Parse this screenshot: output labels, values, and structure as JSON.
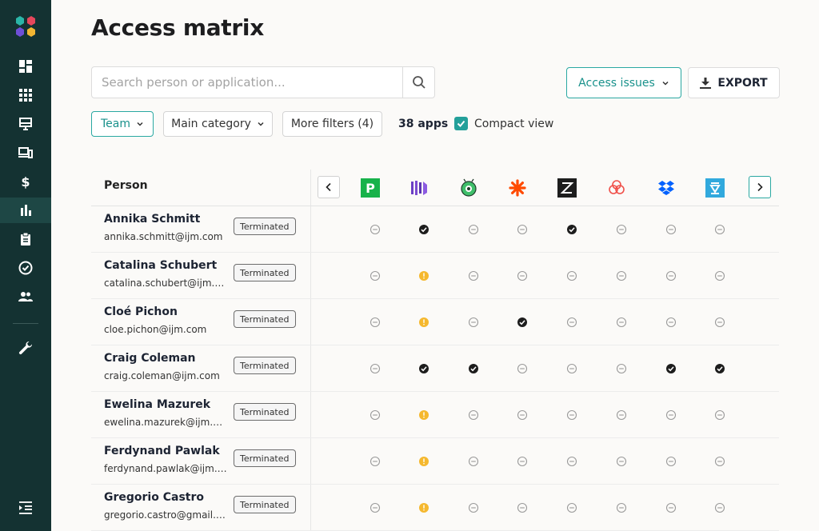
{
  "page": {
    "title": "Access matrix"
  },
  "search": {
    "placeholder": "Search person or application..."
  },
  "toolbar": {
    "access_issues_label": "Access issues",
    "export_label": "EXPORT"
  },
  "filters": {
    "team_label": "Team",
    "main_category_label": "Main category",
    "more_filters_label": "More filters (4)",
    "apps_count": "38 apps",
    "compact_view_label": "Compact view",
    "compact_view_checked": true
  },
  "sidebar": {
    "items": [
      {
        "icon": "dashboard-icon"
      },
      {
        "icon": "apps-grid-icon"
      },
      {
        "icon": "desktop-icon"
      },
      {
        "icon": "devices-icon"
      },
      {
        "icon": "dollar-icon"
      },
      {
        "icon": "bar-chart-icon",
        "active": true
      },
      {
        "icon": "clipboard-icon"
      },
      {
        "icon": "check-circle-icon"
      },
      {
        "icon": "people-icon"
      },
      {
        "icon": "wrench-icon"
      },
      {
        "icon": "menu-indent-icon"
      }
    ]
  },
  "table": {
    "person_header": "Person",
    "apps": [
      {
        "icon": "app-p-logo-icon",
        "color": "#17b24a"
      },
      {
        "icon": "app-bars-logo-icon",
        "color": "#6b3fc4"
      },
      {
        "icon": "app-robot-logo-icon",
        "color": "#3fbf6a"
      },
      {
        "icon": "app-asterisk-logo-icon",
        "color": "#ff4a00"
      },
      {
        "icon": "app-z-logo-icon",
        "color": "#1d1d1d"
      },
      {
        "icon": "app-knot-logo-icon",
        "color": "#f0504a"
      },
      {
        "icon": "app-dropbox-logo-icon",
        "color": "#0061fe"
      },
      {
        "icon": "app-flag-logo-icon",
        "color": "#31a9dd"
      }
    ],
    "rows": [
      {
        "name": "Annika Schmitt",
        "email": "annika.schmitt@ijm.com",
        "status": "Terminated",
        "access": [
          "none",
          "granted",
          "none",
          "none",
          "granted",
          "none",
          "none",
          "none"
        ]
      },
      {
        "name": "Catalina Schubert",
        "email": "catalina.schubert@ijm.c...",
        "status": "Terminated",
        "access": [
          "none",
          "warning",
          "none",
          "none",
          "none",
          "none",
          "none",
          "none"
        ]
      },
      {
        "name": "Cloé Pichon",
        "email": "cloe.pichon@ijm.com",
        "status": "Terminated",
        "access": [
          "none",
          "warning",
          "none",
          "granted",
          "none",
          "none",
          "none",
          "none"
        ]
      },
      {
        "name": "Craig Coleman",
        "email": "craig.coleman@ijm.com",
        "status": "Terminated",
        "access": [
          "none",
          "granted",
          "granted",
          "none",
          "none",
          "none",
          "granted",
          "granted"
        ]
      },
      {
        "name": "Ewelina Mazurek",
        "email": "ewelina.mazurek@ijm.c...",
        "status": "Terminated",
        "access": [
          "none",
          "warning",
          "none",
          "none",
          "none",
          "none",
          "none",
          "none"
        ]
      },
      {
        "name": "Ferdynand Pawlak",
        "email": "ferdynand.pawlak@ijm.c...",
        "status": "Terminated",
        "access": [
          "none",
          "warning",
          "none",
          "none",
          "none",
          "none",
          "none",
          "none"
        ]
      },
      {
        "name": "Gregorio Castro",
        "email": "gregorio.castro@gmail.c...",
        "status": "Terminated",
        "access": [
          "none",
          "warning",
          "none",
          "none",
          "none",
          "none",
          "none",
          "none"
        ]
      }
    ]
  },
  "colors": {
    "accent": "#23a09a",
    "sidebar": "#143232",
    "warning": "#f5b82e",
    "granted": "#1d1d1d"
  }
}
